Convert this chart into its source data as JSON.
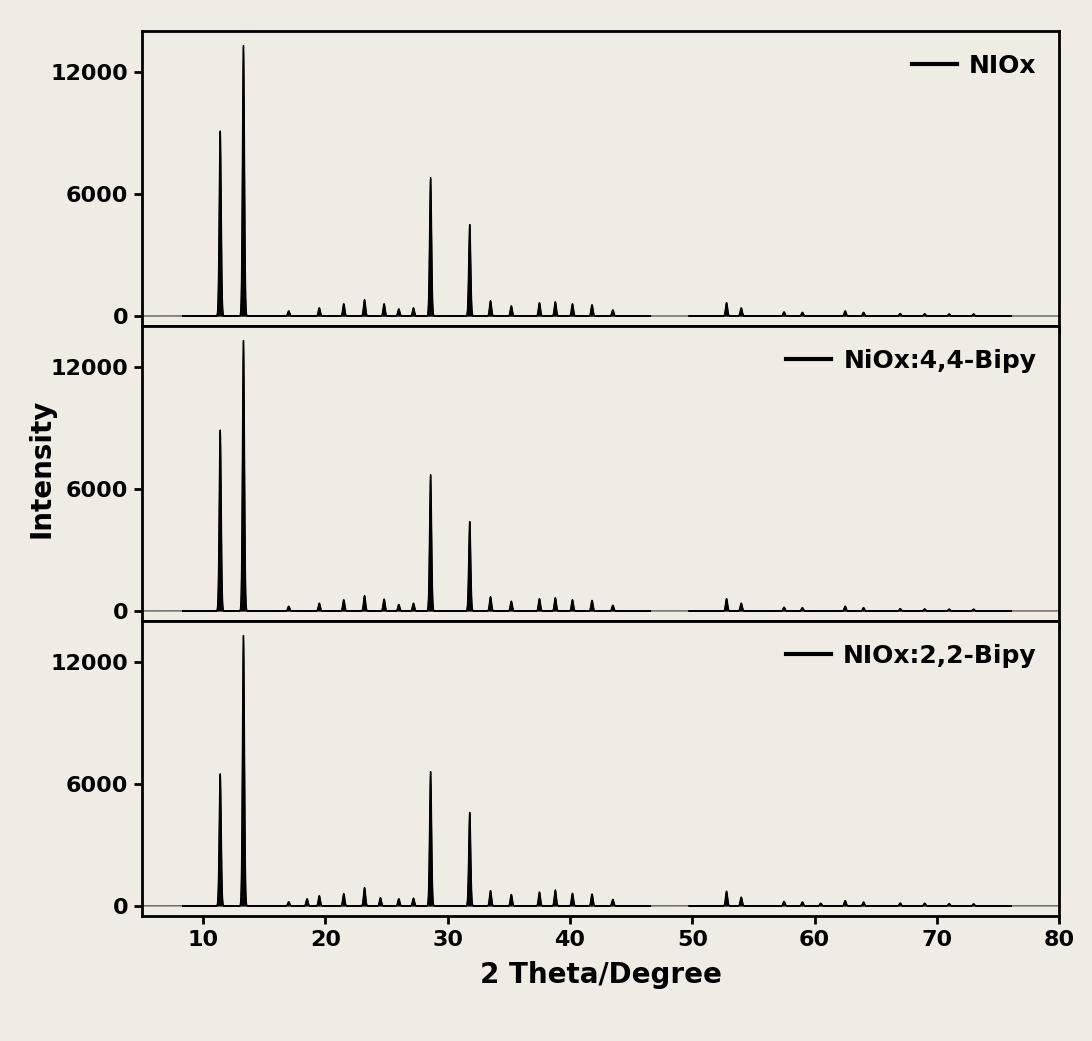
{
  "xlabel": "2 Theta/Degree",
  "ylabel": "Intensity",
  "xlim": [
    5,
    80
  ],
  "ylim": [
    -500,
    14000
  ],
  "yticks": [
    0,
    6000,
    12000
  ],
  "xticks": [
    10,
    20,
    30,
    40,
    50,
    60,
    70,
    80
  ],
  "labels": [
    "NIOx",
    "NiOx:4,4-Bipy",
    "NIOx:2,2-Bipy"
  ],
  "background_color": "#f0ece4",
  "line_color": "#000000",
  "label_fontsize": 20,
  "tick_fontsize": 16,
  "legend_fontsize": 18,
  "panels": [
    {
      "peaks": [
        [
          11.4,
          9100
        ],
        [
          13.3,
          13300
        ],
        [
          17.0,
          250
        ],
        [
          19.5,
          400
        ],
        [
          21.5,
          600
        ],
        [
          23.2,
          800
        ],
        [
          24.8,
          600
        ],
        [
          26.0,
          350
        ],
        [
          27.2,
          400
        ],
        [
          28.6,
          6800
        ],
        [
          31.8,
          4500
        ],
        [
          33.5,
          750
        ],
        [
          35.2,
          500
        ],
        [
          37.5,
          650
        ],
        [
          38.8,
          700
        ],
        [
          40.2,
          600
        ],
        [
          41.8,
          550
        ],
        [
          43.5,
          300
        ],
        [
          52.8,
          650
        ],
        [
          54.0,
          400
        ],
        [
          57.5,
          200
        ],
        [
          59.0,
          180
        ],
        [
          62.5,
          250
        ],
        [
          64.0,
          180
        ],
        [
          67.0,
          120
        ],
        [
          69.0,
          110
        ],
        [
          71.0,
          100
        ],
        [
          73.0,
          100
        ]
      ]
    },
    {
      "peaks": [
        [
          11.4,
          8900
        ],
        [
          13.3,
          13300
        ],
        [
          17.0,
          230
        ],
        [
          19.5,
          380
        ],
        [
          21.5,
          550
        ],
        [
          23.2,
          750
        ],
        [
          24.8,
          580
        ],
        [
          26.0,
          320
        ],
        [
          27.2,
          380
        ],
        [
          28.6,
          6700
        ],
        [
          31.8,
          4400
        ],
        [
          33.5,
          700
        ],
        [
          35.2,
          480
        ],
        [
          37.5,
          600
        ],
        [
          38.8,
          650
        ],
        [
          40.2,
          550
        ],
        [
          41.8,
          520
        ],
        [
          43.5,
          280
        ],
        [
          52.8,
          600
        ],
        [
          54.0,
          380
        ],
        [
          57.5,
          180
        ],
        [
          59.0,
          160
        ],
        [
          62.5,
          230
        ],
        [
          64.0,
          160
        ],
        [
          67.0,
          110
        ],
        [
          69.0,
          100
        ],
        [
          71.0,
          90
        ],
        [
          73.0,
          90
        ]
      ]
    },
    {
      "peaks": [
        [
          11.4,
          6500
        ],
        [
          13.3,
          13300
        ],
        [
          17.0,
          200
        ],
        [
          18.5,
          350
        ],
        [
          19.5,
          500
        ],
        [
          21.5,
          600
        ],
        [
          23.2,
          900
        ],
        [
          24.5,
          400
        ],
        [
          26.0,
          350
        ],
        [
          27.2,
          380
        ],
        [
          28.6,
          6600
        ],
        [
          31.8,
          4600
        ],
        [
          33.5,
          750
        ],
        [
          35.2,
          560
        ],
        [
          37.5,
          680
        ],
        [
          38.8,
          780
        ],
        [
          40.2,
          620
        ],
        [
          41.8,
          580
        ],
        [
          43.5,
          320
        ],
        [
          52.8,
          720
        ],
        [
          54.0,
          430
        ],
        [
          57.5,
          220
        ],
        [
          59.0,
          190
        ],
        [
          60.5,
          130
        ],
        [
          62.5,
          260
        ],
        [
          64.0,
          190
        ],
        [
          67.0,
          140
        ],
        [
          69.0,
          130
        ],
        [
          71.0,
          110
        ],
        [
          73.0,
          100
        ]
      ]
    }
  ]
}
